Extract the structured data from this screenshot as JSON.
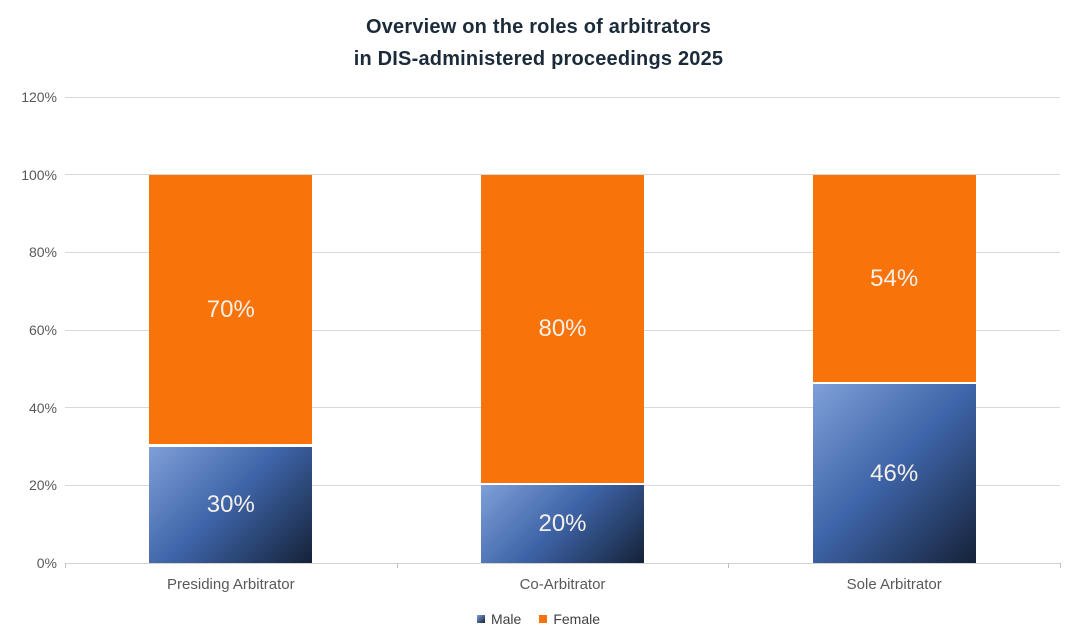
{
  "colors": {
    "title": "#1C2B3A",
    "axis_text": "#595959",
    "category_text": "#595959",
    "legend_text": "#404040",
    "gridline": "#D9D9D9",
    "axis_line": "#D3D3D3",
    "tick": "#BFBFBF",
    "data_label": "#F4F0E8",
    "female": "#F8730A",
    "male_light": "#7FA0D8",
    "male_mid": "#3E64A8",
    "male_dark": "#152238",
    "background": "#FFFFFF"
  },
  "chart_data": {
    "type": "bar",
    "stacked": true,
    "title": "Overview on the roles of arbitrators in DIS-administered proceedings 2025",
    "title_lines": [
      "Overview on the roles of arbitrators",
      "in DIS-administered proceedings 2025"
    ],
    "categories": [
      "Presiding Arbitrator",
      "Co-Arbitrator",
      "Sole Arbitrator"
    ],
    "series": [
      {
        "name": "Male",
        "values": [
          30,
          20,
          46
        ],
        "labels": [
          "30%",
          "20%",
          "46%"
        ]
      },
      {
        "name": "Female",
        "values": [
          70,
          80,
          54
        ],
        "labels": [
          "70%",
          "80%",
          "54%"
        ]
      }
    ],
    "y_ticks": [
      "0%",
      "20%",
      "40%",
      "60%",
      "80%",
      "100%",
      "120%"
    ],
    "ylim": [
      0,
      120
    ],
    "xlabel": "",
    "ylabel": "",
    "grid": true,
    "legend_position": "bottom"
  }
}
